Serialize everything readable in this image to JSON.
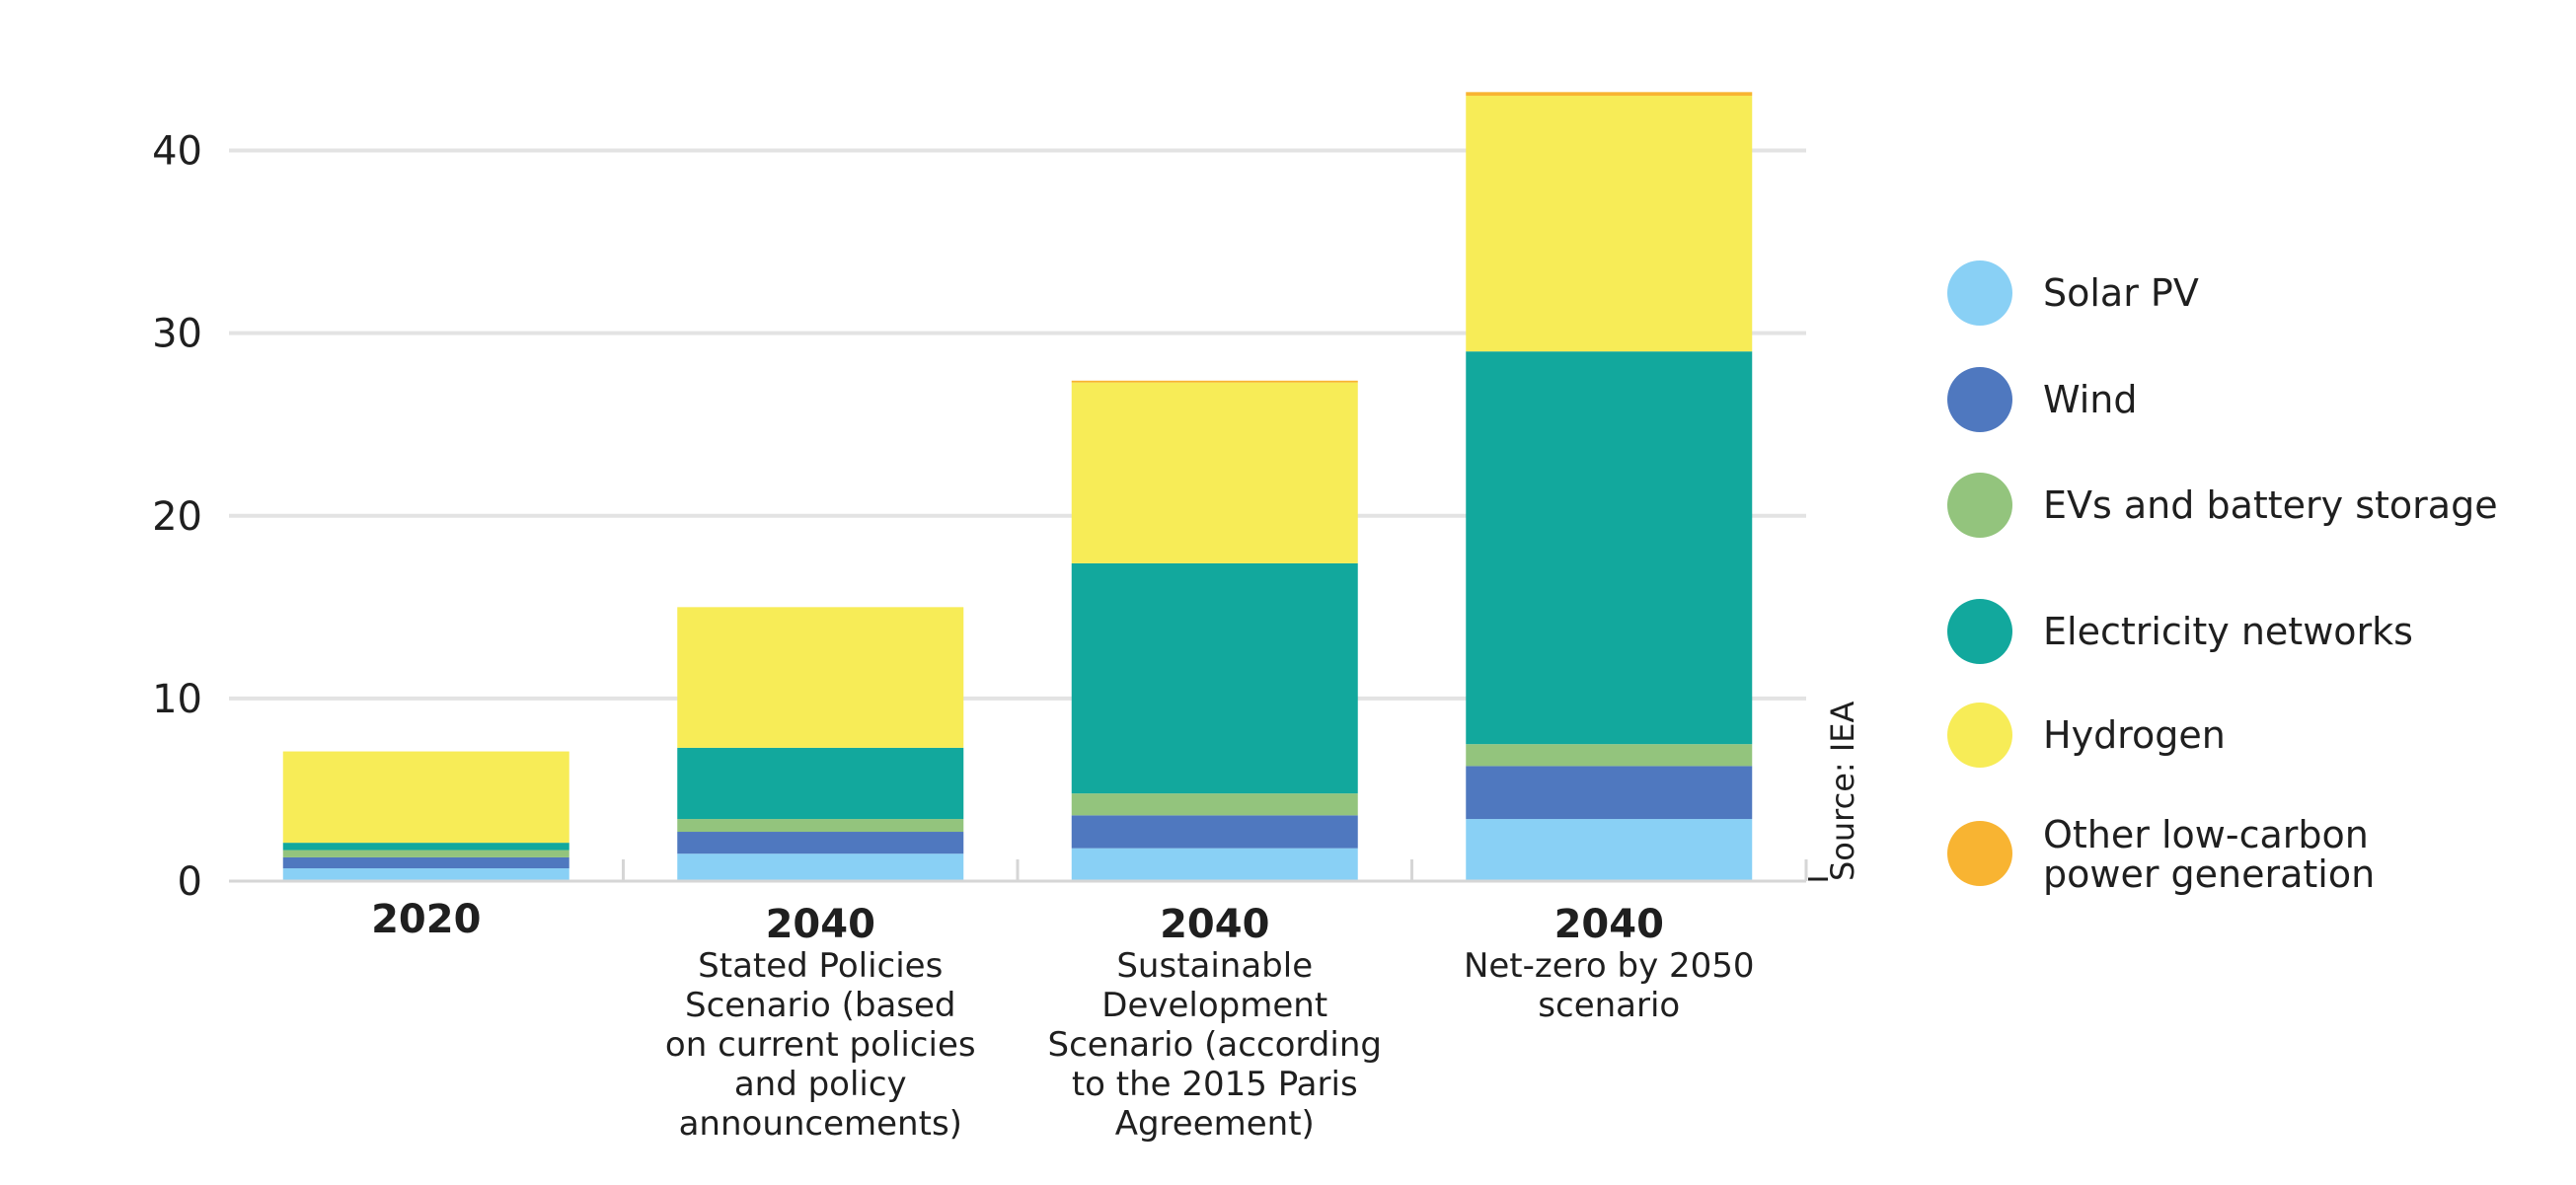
{
  "chart_data": {
    "type": "bar",
    "stacked": true,
    "categories": [
      {
        "year": "2020",
        "lines": []
      },
      {
        "year": "2040",
        "lines": [
          "Stated Policies",
          "Scenario (based",
          "on current policies",
          "and policy",
          "announcements)"
        ]
      },
      {
        "year": "2040",
        "lines": [
          "Sustainable",
          "Development",
          "Scenario (according",
          "to the 2015 Paris",
          "Agreement)"
        ]
      },
      {
        "year": "2040",
        "lines": [
          "Net-zero by 2050",
          "scenario"
        ]
      }
    ],
    "series": [
      {
        "name": "Solar PV",
        "color": "#89d0f5",
        "values": [
          0.7,
          1.5,
          1.8,
          3.4
        ]
      },
      {
        "name": "Wind",
        "color": "#4f78bf",
        "values": [
          0.6,
          1.2,
          1.8,
          2.9
        ]
      },
      {
        "name": "EVs and battery storage",
        "color": "#93c47d",
        "values": [
          0.4,
          0.7,
          1.2,
          1.2
        ]
      },
      {
        "name": "Electricity networks",
        "color": "#12a89d",
        "values": [
          0.4,
          3.9,
          12.6,
          21.5
        ]
      },
      {
        "name": "Hydrogen",
        "color": "#f7ec57",
        "values": [
          5.0,
          7.7,
          9.9,
          14.0
        ]
      },
      {
        "name": "Other low-carbon power generation",
        "legend_lines": [
          "Other low-carbon",
          "power generation"
        ],
        "color": "#f8b432",
        "values": [
          0.0,
          0.0,
          0.1,
          0.2
        ]
      }
    ],
    "y_ticks": [
      "0",
      "10",
      "20",
      "30",
      "40"
    ],
    "ylim": [
      0,
      45
    ],
    "grid": true,
    "legend_position": "right",
    "source": "Source: IEA",
    "xlabel": "",
    "ylabel": "",
    "title": ""
  }
}
